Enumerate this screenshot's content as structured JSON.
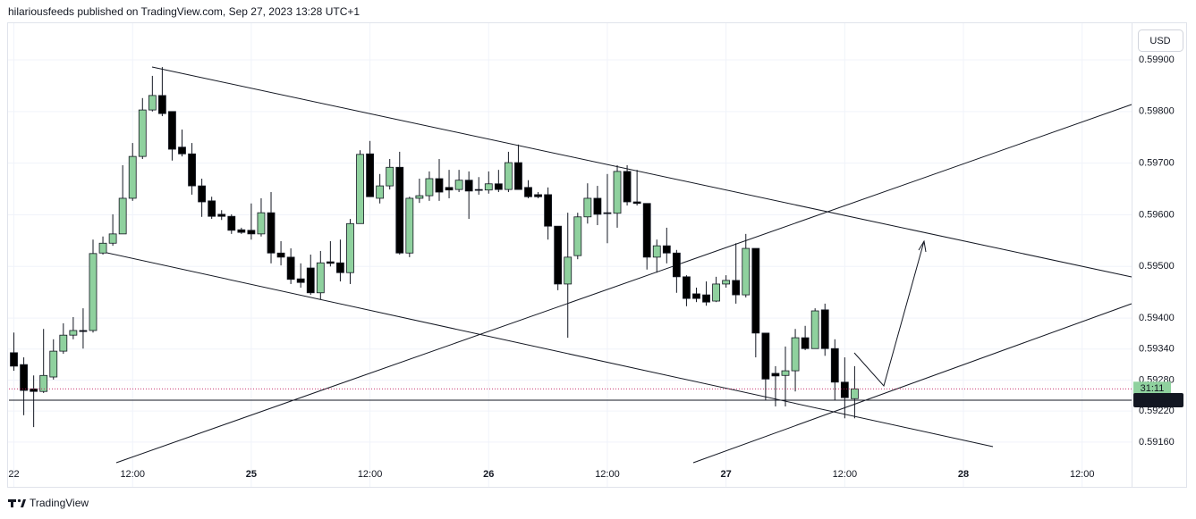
{
  "header": "hilariousfeeds published on TradingView.com, Sep 27, 2023 13:28 UTC+1",
  "footer": "TradingView",
  "currency": "USD",
  "chart_data": {
    "type": "candlestick",
    "up_color": "#8fd19e",
    "down_color": "#000000",
    "grid": true,
    "open": [
      0.59333,
      0.5931,
      0.59263,
      0.59258,
      0.59286,
      0.59336,
      0.59367,
      0.59376,
      0.59376,
      0.59526,
      0.59545,
      0.59563,
      0.59632,
      0.59713,
      0.59803,
      0.59831,
      0.598,
      0.59731,
      0.59718,
      0.59656,
      0.59627,
      0.59601,
      0.59597,
      0.59571,
      0.5957,
      0.59563,
      0.59604,
      0.59526,
      0.59518,
      0.59476,
      0.59497,
      0.59449,
      0.59509,
      0.59507,
      0.59488,
      0.59583,
      0.59718,
      0.59632,
      0.59656,
      0.59692,
      0.59526,
      0.59632,
      0.59637,
      0.5967,
      0.59653,
      0.59649,
      0.59667,
      0.59649,
      0.59648,
      0.5966,
      0.59649,
      0.59701,
      0.59653,
      0.59639,
      0.59639,
      0.59578,
      0.59466,
      0.59521,
      0.59596,
      0.59632,
      0.59604,
      0.59603,
      0.59684,
      0.59625,
      0.59622,
      0.59518,
      0.5954,
      0.59526,
      0.5948,
      0.59447,
      0.59445,
      0.59433,
      0.59466,
      0.59473,
      0.59445,
      0.59535,
      0.59371,
      0.59293,
      0.59289,
      0.59298,
      0.59362,
      0.59341,
      0.59416,
      0.59341,
      0.59276,
      0.59244
    ],
    "high": [
      0.59372,
      0.59324,
      0.59289,
      0.59379,
      0.59359,
      0.5939,
      0.59402,
      0.59419,
      0.59552,
      0.59558,
      0.59601,
      0.59696,
      0.59739,
      0.59826,
      0.59869,
      0.59886,
      0.598,
      0.59765,
      0.59739,
      0.5967,
      0.59635,
      0.59609,
      0.59601,
      0.59575,
      0.59622,
      0.59632,
      0.59644,
      0.59549,
      0.59535,
      0.59506,
      0.59523,
      0.5953,
      0.59549,
      0.59552,
      0.59592,
      0.59725,
      0.59743,
      0.59679,
      0.59708,
      0.59722,
      0.59635,
      0.5967,
      0.59684,
      0.59708,
      0.59687,
      0.59687,
      0.59684,
      0.59673,
      0.59684,
      0.59687,
      0.59722,
      0.59736,
      0.59667,
      0.59644,
      0.59653,
      0.59578,
      0.59604,
      0.59604,
      0.59661,
      0.59656,
      0.59679,
      0.59696,
      0.59696,
      0.59687,
      0.59622,
      0.59552,
      0.59575,
      0.59532,
      0.59483,
      0.59459,
      0.59471,
      0.5948,
      0.59483,
      0.59545,
      0.59563,
      0.59535,
      0.59371,
      0.59307,
      0.59345,
      0.59379,
      0.59385,
      0.59419,
      0.59428,
      0.59359,
      0.59324,
      0.59307
    ],
    "low": [
      0.59298,
      0.59212,
      0.59189,
      0.59255,
      0.59281,
      0.59331,
      0.59359,
      0.59341,
      0.59372,
      0.59523,
      0.5954,
      0.59563,
      0.59627,
      0.59708,
      0.598,
      0.59791,
      0.59705,
      0.59713,
      0.59639,
      0.59596,
      0.59592,
      0.5959,
      0.59563,
      0.59563,
      0.59552,
      0.59558,
      0.59506,
      0.59502,
      0.59466,
      0.59459,
      0.59445,
      0.59436,
      0.595,
      0.59471,
      0.59466,
      0.59583,
      0.59635,
      0.59622,
      0.59649,
      0.59523,
      0.59518,
      0.59623,
      0.59627,
      0.59627,
      0.59632,
      0.59644,
      0.59592,
      0.59639,
      0.59641,
      0.59644,
      0.59644,
      0.59649,
      0.59632,
      0.59632,
      0.59552,
      0.59454,
      0.59362,
      0.59514,
      0.59583,
      0.5958,
      0.59545,
      0.59575,
      0.59618,
      0.59618,
      0.59494,
      0.59488,
      0.59506,
      0.59449,
      0.59423,
      0.59431,
      0.59424,
      0.59431,
      0.59459,
      0.59428,
      0.5944,
      0.59324,
      0.59241,
      0.59229,
      0.59229,
      0.59258,
      0.59338,
      0.59341,
      0.59327,
      0.59241,
      0.59206,
      0.59206
    ],
    "close": [
      0.59307,
      0.5926,
      0.59258,
      0.59289,
      0.59336,
      0.59367,
      0.59376,
      0.59374,
      0.59525,
      0.59545,
      0.59563,
      0.59632,
      0.59713,
      0.59803,
      0.59831,
      0.59796,
      0.59727,
      0.59718,
      0.59656,
      0.59625,
      0.59597,
      0.59597,
      0.5957,
      0.59566,
      0.59563,
      0.59604,
      0.59526,
      0.59518,
      0.59475,
      0.59469,
      0.59449,
      0.59507,
      0.59506,
      0.59488,
      0.59583,
      0.59717,
      0.59635,
      0.59656,
      0.59692,
      0.59526,
      0.59632,
      0.59637,
      0.5967,
      0.59644,
      0.59648,
      0.59667,
      0.59646,
      0.59648,
      0.5966,
      0.59649,
      0.59701,
      0.59649,
      0.59635,
      0.59635,
      0.59578,
      0.59466,
      0.59518,
      0.59596,
      0.59632,
      0.59601,
      0.59603,
      0.59684,
      0.59625,
      0.59622,
      0.59518,
      0.5954,
      0.59526,
      0.5948,
      0.59438,
      0.59438,
      0.59431,
      0.59466,
      0.59473,
      0.59445,
      0.59535,
      0.59371,
      0.59282,
      0.59288,
      0.59298,
      0.59362,
      0.59341,
      0.59414,
      0.59341,
      0.59276,
      0.59246,
      0.59263
    ],
    "xlim": [
      -0.5,
      113
    ],
    "xticks": [
      {
        "value": 0,
        "label": "22"
      },
      {
        "value": 12,
        "label": "12:00"
      },
      {
        "value": 24,
        "label": "25"
      },
      {
        "value": 36,
        "label": "12:00"
      },
      {
        "value": 48,
        "label": "26"
      },
      {
        "value": 60,
        "label": "12:00"
      },
      {
        "value": 72,
        "label": "27"
      },
      {
        "value": 84,
        "label": "12:00"
      },
      {
        "value": 96,
        "label": "28"
      },
      {
        "value": 108,
        "label": "12:00"
      }
    ],
    "ylim": [
      0.5912,
      0.59964
    ],
    "yticks": [
      {
        "value": 0.599,
        "label": "0.59900"
      },
      {
        "value": 0.598,
        "label": "0.59800"
      },
      {
        "value": 0.597,
        "label": "0.59700"
      },
      {
        "value": 0.596,
        "label": "0.59600"
      },
      {
        "value": 0.595,
        "label": "0.59500"
      },
      {
        "value": 0.594,
        "label": "0.59400"
      },
      {
        "value": 0.5934,
        "label": "0.59340"
      },
      {
        "value": 0.5928,
        "label": "0.59280"
      },
      {
        "value": 0.5922,
        "label": "0.59220"
      },
      {
        "value": 0.5916,
        "label": "0.59160"
      }
    ],
    "horizontal_line": 0.59241,
    "countdown": "31:11"
  }
}
